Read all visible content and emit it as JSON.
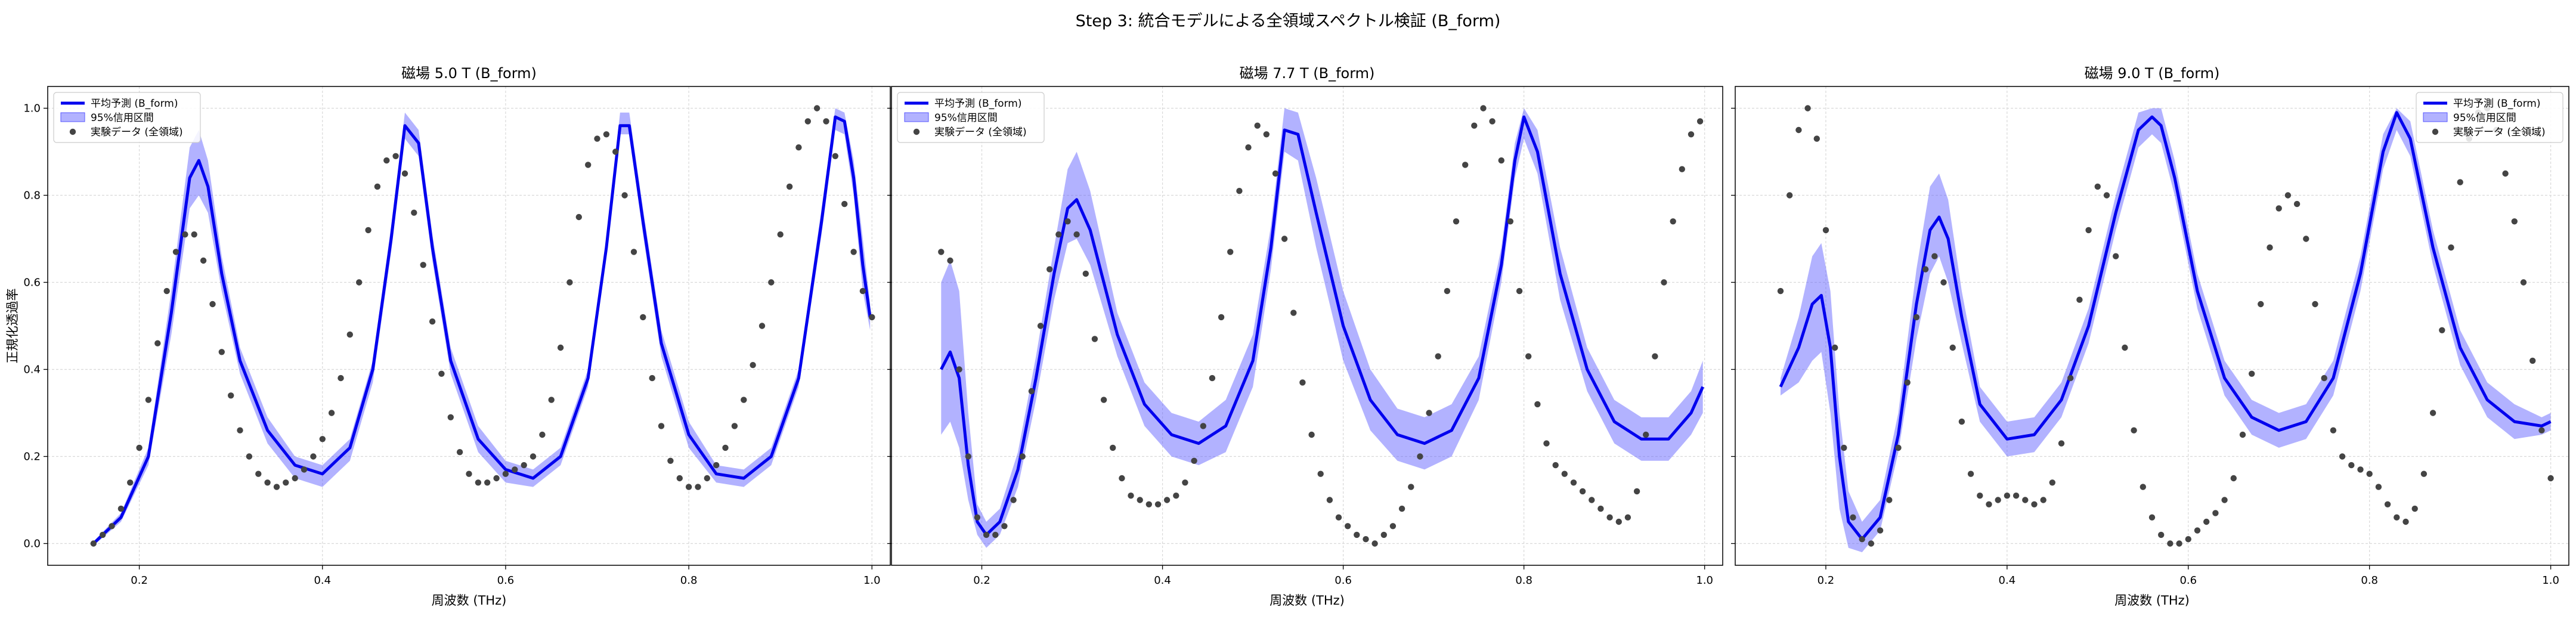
{
  "figure": {
    "suptitle": "Step 3: 統合モデルによる全領域スペクトル検証 (B_form)"
  },
  "colors": {
    "mean_line": "#0000ee",
    "band": "#5555ff",
    "points": "#444444",
    "grid": "#d9d9d9"
  },
  "chart_data": [
    {
      "type": "line",
      "title": "磁場 5.0 T (B_form)",
      "xlabel": "周波数 (THz)",
      "ylabel": "正規化透過率",
      "xlim": [
        0.1,
        1.02
      ],
      "ylim": [
        -0.05,
        1.05
      ],
      "xticks": [
        "0.2",
        "0.4",
        "0.6",
        "0.8",
        "1.0"
      ],
      "yticks": [
        "0.0",
        "0.2",
        "0.4",
        "0.6",
        "0.8",
        "1.0"
      ],
      "grid": true,
      "legend_position": "top-left",
      "legend": [
        "平均予測 (B_form)",
        "95%信用区間",
        "実験データ (全領域)"
      ],
      "mean_prediction": {
        "x": [
          0.15,
          0.18,
          0.21,
          0.235,
          0.255,
          0.265,
          0.275,
          0.29,
          0.31,
          0.34,
          0.37,
          0.4,
          0.43,
          0.455,
          0.475,
          0.49,
          0.505,
          0.52,
          0.54,
          0.57,
          0.6,
          0.63,
          0.66,
          0.69,
          0.71,
          0.725,
          0.735,
          0.75,
          0.77,
          0.8,
          0.83,
          0.86,
          0.89,
          0.92,
          0.945,
          0.96,
          0.97,
          0.98,
          0.99,
          0.998
        ],
        "y": [
          0.0,
          0.06,
          0.2,
          0.53,
          0.84,
          0.88,
          0.82,
          0.62,
          0.42,
          0.26,
          0.18,
          0.16,
          0.22,
          0.4,
          0.7,
          0.96,
          0.92,
          0.68,
          0.42,
          0.24,
          0.17,
          0.15,
          0.2,
          0.38,
          0.68,
          0.96,
          0.96,
          0.74,
          0.46,
          0.25,
          0.16,
          0.15,
          0.2,
          0.38,
          0.74,
          0.98,
          0.97,
          0.84,
          0.64,
          0.52
        ],
        "ci_lower": [
          -0.005,
          0.05,
          0.18,
          0.48,
          0.77,
          0.8,
          0.76,
          0.58,
          0.39,
          0.23,
          0.15,
          0.13,
          0.19,
          0.37,
          0.67,
          0.93,
          0.89,
          0.65,
          0.39,
          0.21,
          0.14,
          0.13,
          0.18,
          0.36,
          0.66,
          0.94,
          0.94,
          0.71,
          0.43,
          0.22,
          0.14,
          0.13,
          0.18,
          0.36,
          0.71,
          0.95,
          0.94,
          0.8,
          0.58,
          0.49
        ],
        "ci_upper": [
          0.005,
          0.07,
          0.22,
          0.58,
          0.91,
          0.95,
          0.88,
          0.66,
          0.45,
          0.29,
          0.2,
          0.18,
          0.24,
          0.42,
          0.73,
          0.99,
          0.95,
          0.71,
          0.45,
          0.27,
          0.19,
          0.17,
          0.22,
          0.4,
          0.7,
          0.99,
          0.99,
          0.77,
          0.49,
          0.28,
          0.18,
          0.17,
          0.22,
          0.4,
          0.77,
          1.0,
          0.99,
          0.88,
          0.7,
          0.55
        ]
      },
      "experimental_data": {
        "x": [
          0.15,
          0.16,
          0.17,
          0.18,
          0.19,
          0.2,
          0.21,
          0.22,
          0.23,
          0.24,
          0.25,
          0.26,
          0.27,
          0.28,
          0.29,
          0.3,
          0.31,
          0.32,
          0.33,
          0.34,
          0.35,
          0.36,
          0.37,
          0.38,
          0.39,
          0.4,
          0.41,
          0.42,
          0.43,
          0.44,
          0.45,
          0.46,
          0.47,
          0.48,
          0.49,
          0.5,
          0.51,
          0.52,
          0.53,
          0.54,
          0.55,
          0.56,
          0.57,
          0.58,
          0.59,
          0.6,
          0.61,
          0.62,
          0.63,
          0.64,
          0.65,
          0.66,
          0.67,
          0.68,
          0.69,
          0.7,
          0.71,
          0.72,
          0.73,
          0.74,
          0.75,
          0.76,
          0.77,
          0.78,
          0.79,
          0.8,
          0.81,
          0.82,
          0.83,
          0.84,
          0.85,
          0.86,
          0.87,
          0.88,
          0.89,
          0.9,
          0.91,
          0.92,
          0.93,
          0.94,
          0.95,
          0.96,
          0.97,
          0.98,
          0.99,
          1.0
        ],
        "y": [
          0.0,
          0.02,
          0.04,
          0.08,
          0.14,
          0.22,
          0.33,
          0.46,
          0.58,
          0.67,
          0.71,
          0.71,
          0.65,
          0.55,
          0.44,
          0.34,
          0.26,
          0.2,
          0.16,
          0.14,
          0.13,
          0.14,
          0.15,
          0.17,
          0.2,
          0.24,
          0.3,
          0.38,
          0.48,
          0.6,
          0.72,
          0.82,
          0.88,
          0.89,
          0.85,
          0.76,
          0.64,
          0.51,
          0.39,
          0.29,
          0.21,
          0.16,
          0.14,
          0.14,
          0.15,
          0.16,
          0.17,
          0.18,
          0.2,
          0.25,
          0.33,
          0.45,
          0.6,
          0.75,
          0.87,
          0.93,
          0.94,
          0.9,
          0.8,
          0.67,
          0.52,
          0.38,
          0.27,
          0.19,
          0.15,
          0.13,
          0.13,
          0.15,
          0.18,
          0.22,
          0.27,
          0.33,
          0.41,
          0.5,
          0.6,
          0.71,
          0.82,
          0.91,
          0.97,
          1.0,
          0.97,
          0.89,
          0.78,
          0.67,
          0.58,
          0.52
        ]
      }
    },
    {
      "type": "line",
      "title": "磁場 7.7 T (B_form)",
      "xlabel": "周波数 (THz)",
      "ylabel": "",
      "xlim": [
        0.1,
        1.02
      ],
      "ylim": [
        -0.05,
        1.05
      ],
      "xticks": [
        "0.2",
        "0.4",
        "0.6",
        "0.8",
        "1.0"
      ],
      "yticks": [],
      "grid": true,
      "legend_position": "top-left",
      "legend": [
        "平均予測 (B_form)",
        "95%信用区間",
        "実験データ (全領域)"
      ],
      "mean_prediction": {
        "x": [
          0.155,
          0.165,
          0.175,
          0.185,
          0.195,
          0.205,
          0.22,
          0.24,
          0.26,
          0.28,
          0.295,
          0.305,
          0.32,
          0.35,
          0.38,
          0.41,
          0.44,
          0.47,
          0.5,
          0.52,
          0.535,
          0.55,
          0.57,
          0.6,
          0.63,
          0.66,
          0.69,
          0.72,
          0.75,
          0.775,
          0.79,
          0.8,
          0.815,
          0.84,
          0.87,
          0.9,
          0.93,
          0.96,
          0.985,
          0.998
        ],
        "y": [
          0.4,
          0.44,
          0.38,
          0.18,
          0.05,
          0.02,
          0.05,
          0.17,
          0.38,
          0.62,
          0.77,
          0.79,
          0.72,
          0.48,
          0.32,
          0.25,
          0.23,
          0.27,
          0.42,
          0.68,
          0.95,
          0.94,
          0.76,
          0.5,
          0.33,
          0.25,
          0.23,
          0.26,
          0.38,
          0.64,
          0.88,
          0.98,
          0.9,
          0.62,
          0.4,
          0.28,
          0.24,
          0.24,
          0.3,
          0.36
        ],
        "ci_lower": [
          0.25,
          0.28,
          0.22,
          0.1,
          0.02,
          -0.01,
          0.02,
          0.13,
          0.33,
          0.56,
          0.69,
          0.7,
          0.64,
          0.43,
          0.27,
          0.2,
          0.18,
          0.21,
          0.36,
          0.63,
          0.9,
          0.88,
          0.68,
          0.42,
          0.26,
          0.19,
          0.17,
          0.2,
          0.33,
          0.6,
          0.84,
          0.93,
          0.85,
          0.56,
          0.35,
          0.23,
          0.19,
          0.19,
          0.25,
          0.3
        ],
        "ci_upper": [
          0.6,
          0.65,
          0.58,
          0.3,
          0.09,
          0.05,
          0.08,
          0.21,
          0.43,
          0.68,
          0.86,
          0.9,
          0.81,
          0.53,
          0.37,
          0.3,
          0.28,
          0.33,
          0.48,
          0.73,
          1.0,
          0.99,
          0.84,
          0.58,
          0.4,
          0.31,
          0.29,
          0.32,
          0.43,
          0.68,
          0.92,
          1.0,
          0.95,
          0.68,
          0.45,
          0.33,
          0.29,
          0.29,
          0.35,
          0.42
        ]
      },
      "experimental_data": {
        "x": [
          0.155,
          0.165,
          0.175,
          0.185,
          0.195,
          0.205,
          0.215,
          0.225,
          0.235,
          0.245,
          0.255,
          0.265,
          0.275,
          0.285,
          0.295,
          0.305,
          0.315,
          0.325,
          0.335,
          0.345,
          0.355,
          0.365,
          0.375,
          0.385,
          0.395,
          0.405,
          0.415,
          0.425,
          0.435,
          0.445,
          0.455,
          0.465,
          0.475,
          0.485,
          0.495,
          0.505,
          0.515,
          0.525,
          0.535,
          0.545,
          0.555,
          0.565,
          0.575,
          0.585,
          0.595,
          0.605,
          0.615,
          0.625,
          0.635,
          0.645,
          0.655,
          0.665,
          0.675,
          0.685,
          0.695,
          0.705,
          0.715,
          0.725,
          0.735,
          0.745,
          0.755,
          0.765,
          0.775,
          0.785,
          0.795,
          0.805,
          0.815,
          0.825,
          0.835,
          0.845,
          0.855,
          0.865,
          0.875,
          0.885,
          0.895,
          0.905,
          0.915,
          0.925,
          0.935,
          0.945,
          0.955,
          0.965,
          0.975,
          0.985,
          0.995
        ],
        "y": [
          0.67,
          0.65,
          0.4,
          0.2,
          0.06,
          0.02,
          0.02,
          0.04,
          0.1,
          0.2,
          0.35,
          0.5,
          0.63,
          0.71,
          0.74,
          0.71,
          0.62,
          0.47,
          0.33,
          0.22,
          0.15,
          0.11,
          0.1,
          0.09,
          0.09,
          0.1,
          0.11,
          0.14,
          0.19,
          0.27,
          0.38,
          0.52,
          0.67,
          0.81,
          0.91,
          0.96,
          0.94,
          0.85,
          0.7,
          0.53,
          0.37,
          0.25,
          0.16,
          0.1,
          0.06,
          0.04,
          0.02,
          0.01,
          0.0,
          0.02,
          0.04,
          0.08,
          0.13,
          0.2,
          0.3,
          0.43,
          0.58,
          0.74,
          0.87,
          0.96,
          1.0,
          0.97,
          0.88,
          0.74,
          0.58,
          0.43,
          0.32,
          0.23,
          0.18,
          0.16,
          0.14,
          0.12,
          0.1,
          0.08,
          0.06,
          0.05,
          0.06,
          0.12,
          0.25,
          0.43,
          0.6,
          0.74,
          0.86,
          0.94,
          0.97
        ]
      }
    },
    {
      "type": "line",
      "title": "磁場 9.0 T (B_form)",
      "xlabel": "周波数 (THz)",
      "ylabel": "",
      "xlim": [
        0.1,
        1.02
      ],
      "ylim": [
        -0.05,
        1.05
      ],
      "xticks": [
        "0.2",
        "0.4",
        "0.6",
        "0.8",
        "1.0"
      ],
      "yticks": [],
      "grid": true,
      "legend_position": "top-right",
      "legend": [
        "平均予測 (B_form)",
        "95%信用区間",
        "実験データ (全領域)"
      ],
      "mean_prediction": {
        "x": [
          0.15,
          0.17,
          0.185,
          0.195,
          0.205,
          0.215,
          0.225,
          0.24,
          0.26,
          0.28,
          0.3,
          0.315,
          0.325,
          0.335,
          0.35,
          0.37,
          0.4,
          0.43,
          0.46,
          0.49,
          0.52,
          0.545,
          0.56,
          0.57,
          0.585,
          0.61,
          0.64,
          0.67,
          0.7,
          0.73,
          0.76,
          0.79,
          0.815,
          0.83,
          0.845,
          0.87,
          0.9,
          0.93,
          0.96,
          0.99,
          1.0
        ],
        "y": [
          0.36,
          0.45,
          0.55,
          0.57,
          0.45,
          0.2,
          0.05,
          0.01,
          0.06,
          0.25,
          0.55,
          0.72,
          0.75,
          0.7,
          0.52,
          0.32,
          0.24,
          0.25,
          0.33,
          0.5,
          0.76,
          0.95,
          0.98,
          0.96,
          0.84,
          0.58,
          0.38,
          0.29,
          0.26,
          0.28,
          0.38,
          0.62,
          0.9,
          0.99,
          0.93,
          0.68,
          0.45,
          0.33,
          0.28,
          0.27,
          0.28
        ],
        "ci_lower": [
          0.34,
          0.37,
          0.42,
          0.44,
          0.3,
          0.08,
          -0.01,
          -0.02,
          0.03,
          0.21,
          0.47,
          0.62,
          0.66,
          0.6,
          0.46,
          0.28,
          0.2,
          0.21,
          0.29,
          0.46,
          0.72,
          0.91,
          0.94,
          0.92,
          0.8,
          0.54,
          0.34,
          0.25,
          0.22,
          0.24,
          0.34,
          0.58,
          0.86,
          0.95,
          0.89,
          0.64,
          0.41,
          0.29,
          0.24,
          0.25,
          0.26
        ],
        "ci_upper": [
          0.38,
          0.52,
          0.66,
          0.69,
          0.58,
          0.3,
          0.12,
          0.05,
          0.1,
          0.3,
          0.63,
          0.82,
          0.85,
          0.79,
          0.58,
          0.36,
          0.28,
          0.29,
          0.37,
          0.54,
          0.8,
          0.99,
          1.0,
          1.0,
          0.88,
          0.62,
          0.42,
          0.33,
          0.3,
          0.32,
          0.42,
          0.66,
          0.94,
          1.0,
          0.97,
          0.72,
          0.49,
          0.37,
          0.32,
          0.29,
          0.3
        ]
      },
      "experimental_data": {
        "x": [
          0.15,
          0.16,
          0.17,
          0.18,
          0.19,
          0.2,
          0.21,
          0.22,
          0.23,
          0.24,
          0.25,
          0.26,
          0.27,
          0.28,
          0.29,
          0.3,
          0.31,
          0.32,
          0.33,
          0.34,
          0.35,
          0.36,
          0.37,
          0.38,
          0.39,
          0.4,
          0.41,
          0.42,
          0.43,
          0.44,
          0.45,
          0.46,
          0.47,
          0.48,
          0.49,
          0.5,
          0.51,
          0.52,
          0.53,
          0.54,
          0.55,
          0.56,
          0.57,
          0.58,
          0.59,
          0.6,
          0.61,
          0.62,
          0.63,
          0.64,
          0.65,
          0.66,
          0.67,
          0.68,
          0.69,
          0.7,
          0.71,
          0.72,
          0.73,
          0.74,
          0.75,
          0.76,
          0.77,
          0.78,
          0.79,
          0.8,
          0.81,
          0.82,
          0.83,
          0.84,
          0.85,
          0.86,
          0.87,
          0.88,
          0.89,
          0.9,
          0.91,
          0.92,
          0.93,
          0.94,
          0.95,
          0.96,
          0.97,
          0.98,
          0.99,
          1.0
        ],
        "y": [
          0.58,
          0.8,
          0.95,
          1.0,
          0.93,
          0.72,
          0.45,
          0.22,
          0.06,
          0.01,
          0.0,
          0.03,
          0.1,
          0.22,
          0.37,
          0.52,
          0.63,
          0.66,
          0.6,
          0.45,
          0.28,
          0.16,
          0.11,
          0.09,
          0.1,
          0.11,
          0.11,
          0.1,
          0.09,
          0.1,
          0.14,
          0.23,
          0.38,
          0.56,
          0.72,
          0.82,
          0.8,
          0.66,
          0.45,
          0.26,
          0.13,
          0.06,
          0.02,
          0.0,
          0.0,
          0.01,
          0.03,
          0.05,
          0.07,
          0.1,
          0.15,
          0.25,
          0.39,
          0.55,
          0.68,
          0.77,
          0.8,
          0.78,
          0.7,
          0.55,
          0.38,
          0.26,
          0.2,
          0.18,
          0.17,
          0.16,
          0.13,
          0.09,
          0.06,
          0.05,
          0.08,
          0.16,
          0.3,
          0.49,
          0.68,
          0.83,
          0.93,
          0.99,
          1.0,
          0.95,
          0.85,
          0.74,
          0.6,
          0.42,
          0.26,
          0.15
        ]
      }
    }
  ]
}
